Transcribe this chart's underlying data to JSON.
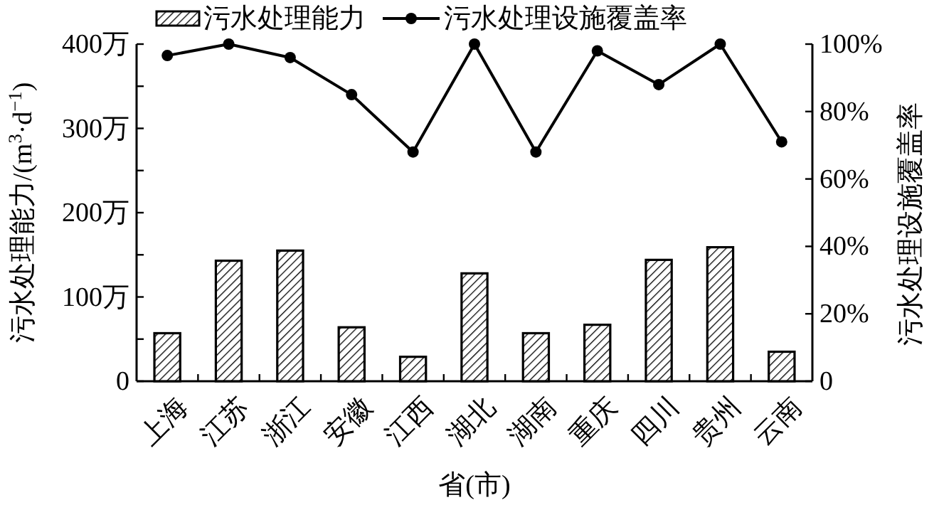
{
  "chart_data": {
    "type": "bar",
    "categories": [
      "上海",
      "江苏",
      "浙江",
      "安徽",
      "江西",
      "湖北",
      "湖南",
      "重庆",
      "四川",
      "贵州",
      "云南"
    ],
    "series": [
      {
        "name": "污水处理能力",
        "color": "#000000",
        "values": [
          57,
          143,
          155,
          64,
          29,
          128,
          57,
          67,
          144,
          159,
          35
        ]
      },
      {
        "name": "污水处理设施覆盖率",
        "type": "line",
        "axis": "y2",
        "color": "#000000",
        "marker": "circle",
        "values": [
          96.6,
          100,
          96,
          85,
          68,
          100,
          68,
          98,
          88,
          100,
          71
        ]
      }
    ],
    "xlabel": "省(市)",
    "ylabel": "污水处理能力/(m$^{3}$·d$^{−1}$)",
    "y2label": "污水处理设施覆盖率",
    "ylim": [
      0,
      400
    ],
    "yticks": [
      0,
      {
        "value": 50,
        "label": null
      },
      {
        "value": 100,
        "label": "100万"
      },
      {
        "value": 150,
        "label": null
      },
      {
        "value": 200,
        "label": "200万"
      },
      {
        "value": 250,
        "label": null
      },
      {
        "value": 300,
        "label": "300万"
      },
      {
        "value": 350,
        "label": null
      },
      {
        "value": 400,
        "label": "400万"
      }
    ],
    "y2lim": [
      0,
      100
    ],
    "y2ticks": [
      0,
      {
        "value": 20,
        "label": "20%"
      },
      {
        "value": 40,
        "label": "40%"
      },
      {
        "value": 60,
        "label": "60%"
      },
      {
        "value": 80,
        "label": "80%"
      },
      {
        "value": 100,
        "label": "100%"
      }
    ],
    "legend": "top"
  }
}
